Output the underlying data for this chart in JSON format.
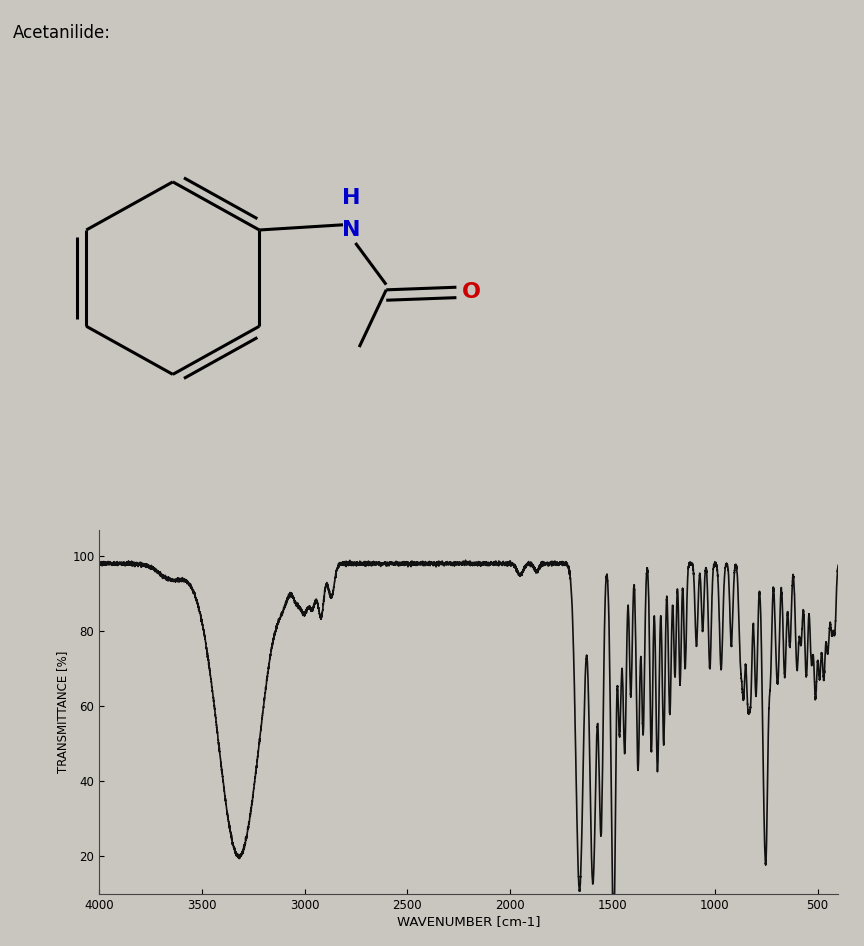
{
  "title": "Acetanilide:",
  "title_fontsize": 12,
  "background_color": "#c9c5bf",
  "ylabel": "TRANSMITTANCE [%]",
  "xlabel": "WAVENUMBER [cm-1]",
  "xlim": [
    4000,
    400
  ],
  "ylim": [
    10,
    107
  ],
  "yticks": [
    20,
    40,
    60,
    80,
    100
  ],
  "xticks": [
    4000,
    3500,
    3000,
    2500,
    2000,
    1500,
    1000,
    500
  ],
  "line_color": "#111111",
  "line_width": 1.2,
  "struct_bg": "#c9c5bf",
  "nh_color": "#0000cc",
  "o_color": "#cc0000",
  "bond_lw": 2.2
}
